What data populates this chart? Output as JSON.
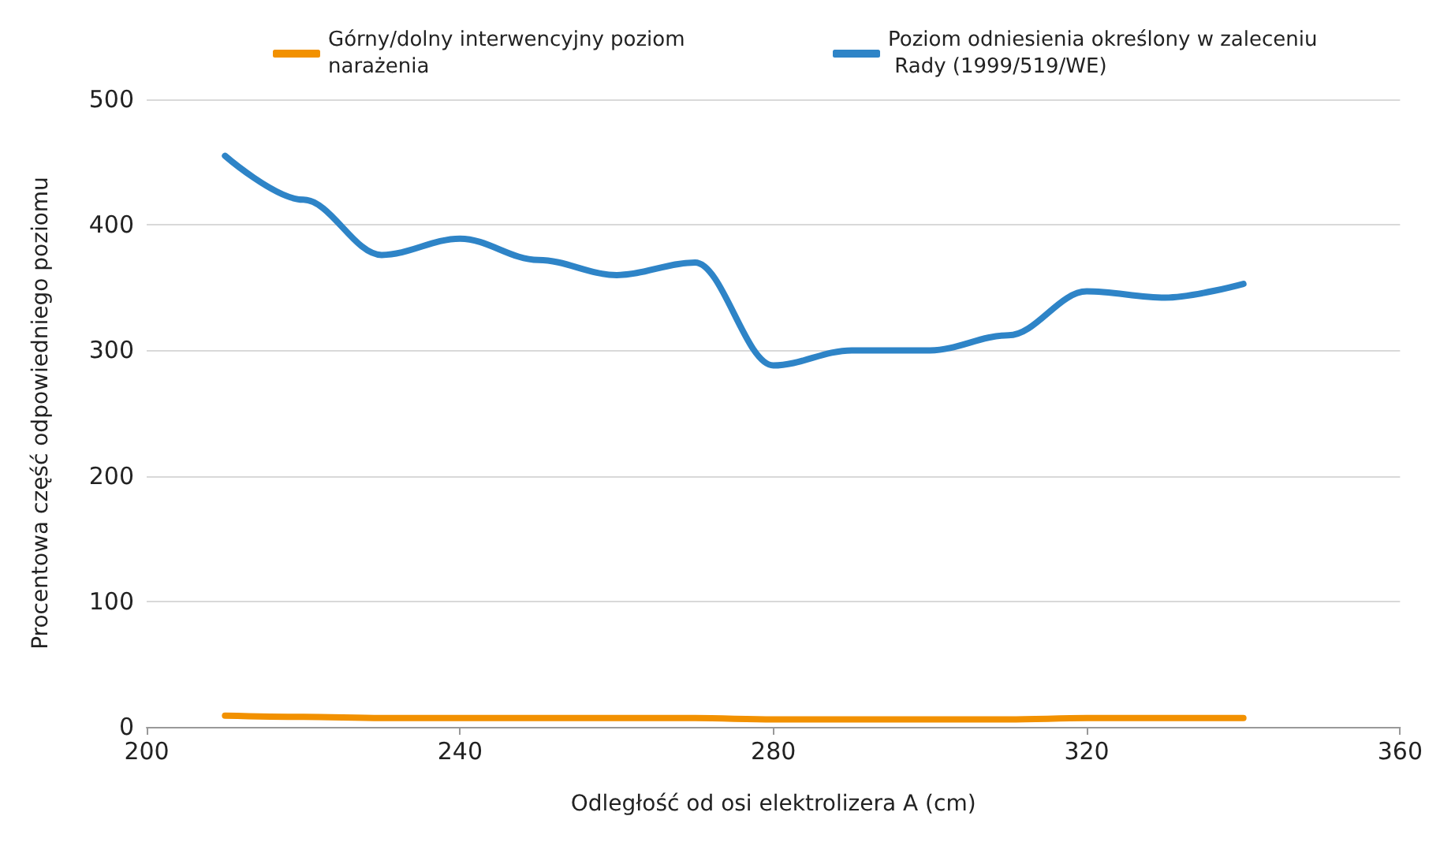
{
  "chart_data": {
    "type": "line",
    "xlabel": "Odległość od osi elektrolizera A (cm)",
    "ylabel": "Procentowa część odpowiedniego poziomu",
    "x": [
      210,
      220,
      230,
      240,
      250,
      260,
      270,
      280,
      290,
      300,
      310,
      320,
      330,
      340
    ],
    "series": [
      {
        "name": "Górny/dolny interwencyjny poziom narażenia",
        "color": "#f29100",
        "values": [
          9,
          8,
          7,
          7,
          7,
          7,
          7,
          6,
          6,
          6,
          6,
          7,
          7,
          7
        ]
      },
      {
        "name": "Poziom odniesienia określony w zaleceniu Rady (1999/519/WE)",
        "color": "#2e84c7",
        "values": [
          455,
          420,
          376,
          389,
          372,
          360,
          370,
          288,
          300,
          300,
          312,
          347,
          342,
          353
        ]
      }
    ],
    "xlim": [
      200,
      360
    ],
    "xticks": [
      200,
      240,
      280,
      320,
      360
    ],
    "ylim": [
      0,
      500
    ],
    "yticks": [
      0,
      100,
      200,
      300,
      400,
      500
    ],
    "grid": "y",
    "legend": "top",
    "marker": "none",
    "line_style": "solid"
  }
}
